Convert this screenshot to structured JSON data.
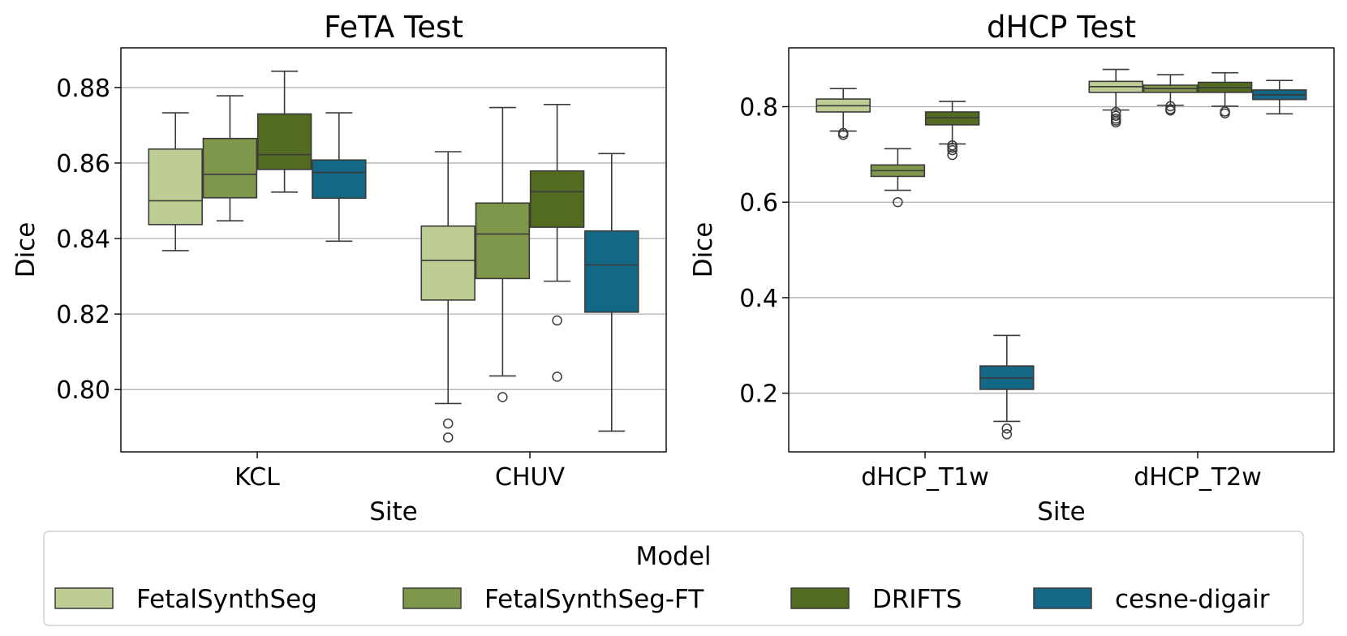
{
  "chart_data": [
    {
      "type": "box",
      "title": "FeTA Test",
      "xlabel": "Site",
      "ylabel": "Dice",
      "ylim": [
        0.7835,
        0.8905
      ],
      "yticks": [
        0.8,
        0.82,
        0.84,
        0.86,
        0.88
      ],
      "ytick_labels": [
        "0.80",
        "0.82",
        "0.84",
        "0.86",
        "0.88"
      ],
      "grid": "y",
      "categories": [
        "KCL",
        "CHUV"
      ],
      "series": [
        {
          "name": "FetalSynthSeg",
          "color": "#bdcd93",
          "boxes": [
            {
              "category": "KCL",
              "whislo": 0.8368,
              "q1": 0.8437,
              "median": 0.85,
              "q3": 0.8637,
              "whishi": 0.8733,
              "fliers": []
            },
            {
              "category": "CHUV",
              "whislo": 0.7963,
              "q1": 0.8237,
              "median": 0.8342,
              "q3": 0.8433,
              "whishi": 0.863,
              "fliers": [
                0.791,
                0.7873
              ]
            }
          ]
        },
        {
          "name": "FetalSynthSeg-FT",
          "color": "#7f974a",
          "boxes": [
            {
              "category": "KCL",
              "whislo": 0.8447,
              "q1": 0.8508,
              "median": 0.857,
              "q3": 0.8665,
              "whishi": 0.8778,
              "fliers": []
            },
            {
              "category": "CHUV",
              "whislo": 0.8036,
              "q1": 0.8294,
              "median": 0.8412,
              "q3": 0.8494,
              "whishi": 0.8747,
              "fliers": [
                0.798
              ]
            }
          ]
        },
        {
          "name": "DRIFTS",
          "color": "#536b21",
          "boxes": [
            {
              "category": "KCL",
              "whislo": 0.8523,
              "q1": 0.8583,
              "median": 0.8622,
              "q3": 0.873,
              "whishi": 0.8843,
              "fliers": []
            },
            {
              "category": "CHUV",
              "whislo": 0.8287,
              "q1": 0.843,
              "median": 0.8524,
              "q3": 0.8579,
              "whishi": 0.8755,
              "fliers": [
                0.8183,
                0.8034
              ]
            }
          ]
        },
        {
          "name": "cesne-digair",
          "color": "#156786",
          "boxes": [
            {
              "category": "KCL",
              "whislo": 0.8393,
              "q1": 0.8507,
              "median": 0.8575,
              "q3": 0.8608,
              "whishi": 0.8733,
              "fliers": []
            },
            {
              "category": "CHUV",
              "whislo": 0.789,
              "q1": 0.8205,
              "median": 0.833,
              "q3": 0.842,
              "whishi": 0.8625,
              "fliers": []
            }
          ]
        }
      ]
    },
    {
      "type": "box",
      "title": "dHCP Test",
      "xlabel": "Site",
      "ylabel": "Dice",
      "ylim": [
        0.0771,
        0.9232
      ],
      "yticks": [
        0.2,
        0.4,
        0.6,
        0.8
      ],
      "ytick_labels": [
        "0.2",
        "0.4",
        "0.6",
        "0.8"
      ],
      "grid": "y",
      "categories": [
        "dHCP_T1w",
        "dHCP_T2w"
      ],
      "series": [
        {
          "name": "FetalSynthSeg",
          "color": "#bdcd93",
          "boxes": [
            {
              "category": "dHCP_T1w",
              "whislo": 0.749,
              "q1": 0.789,
              "median": 0.802,
              "q3": 0.816,
              "whishi": 0.838,
              "fliers": [
                0.745,
                0.741
              ]
            },
            {
              "category": "dHCP_T2w",
              "whislo": 0.793,
              "q1": 0.83,
              "median": 0.842,
              "q3": 0.853,
              "whishi": 0.878,
              "fliers": [
                0.789,
                0.781,
                0.775,
                0.771,
                0.767
              ]
            }
          ]
        },
        {
          "name": "FetalSynthSeg-FT",
          "color": "#7f974a",
          "boxes": [
            {
              "category": "dHCP_T1w",
              "whislo": 0.625,
              "q1": 0.654,
              "median": 0.666,
              "q3": 0.678,
              "whishi": 0.712,
              "fliers": [
                0.6
              ]
            },
            {
              "category": "dHCP_T2w",
              "whislo": 0.803,
              "q1": 0.83,
              "median": 0.838,
              "q3": 0.845,
              "whishi": 0.867,
              "fliers": [
                0.801,
                0.795,
                0.792
              ]
            }
          ]
        },
        {
          "name": "DRIFTS",
          "color": "#536b21",
          "boxes": [
            {
              "category": "dHCP_T1w",
              "whislo": 0.722,
              "q1": 0.762,
              "median": 0.777,
              "q3": 0.789,
              "whishi": 0.811,
              "fliers": [
                0.719,
                0.714,
                0.709,
                0.699
              ]
            },
            {
              "category": "dHCP_T2w",
              "whislo": 0.801,
              "q1": 0.83,
              "median": 0.84,
              "q3": 0.851,
              "whishi": 0.871,
              "fliers": [
                0.79,
                0.786
              ]
            }
          ]
        },
        {
          "name": "cesne-digair",
          "color": "#156786",
          "boxes": [
            {
              "category": "dHCP_T1w",
              "whislo": 0.141,
              "q1": 0.208,
              "median": 0.232,
              "q3": 0.257,
              "whishi": 0.321,
              "fliers": [
                0.126,
                0.114
              ]
            },
            {
              "category": "dHCP_T2w",
              "whislo": 0.785,
              "q1": 0.815,
              "median": 0.825,
              "q3": 0.835,
              "whishi": 0.855,
              "fliers": []
            }
          ]
        }
      ]
    }
  ],
  "legend": {
    "title": "Model",
    "placement": "bottom-center",
    "entries": [
      {
        "label": "FetalSynthSeg",
        "color": "#bdcd93"
      },
      {
        "label": "FetalSynthSeg-FT",
        "color": "#7f974a"
      },
      {
        "label": "DRIFTS",
        "color": "#536b21"
      },
      {
        "label": "cesne-digair",
        "color": "#156786"
      }
    ]
  }
}
